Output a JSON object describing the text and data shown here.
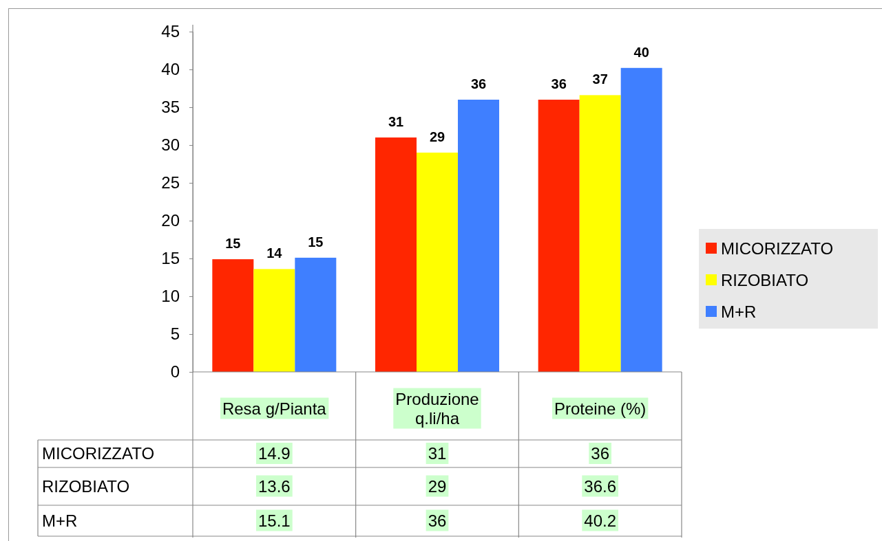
{
  "chart_data": {
    "type": "bar",
    "categories": [
      "Resa g/Pianta",
      "Produzione q.li/ha",
      "Proteine  (%)"
    ],
    "series": [
      {
        "name": "MICORIZZATO",
        "color": "#ff2600",
        "values": [
          14.9,
          31,
          36
        ]
      },
      {
        "name": "RIZOBIATO",
        "color": "#ffff00",
        "values": [
          13.6,
          29,
          36.6
        ]
      },
      {
        "name": "M+R",
        "color": "#3f7fff",
        "values": [
          15.1,
          36,
          40.2
        ]
      }
    ],
    "annotations": [
      "15",
      "31",
      "36",
      "14",
      "29",
      "37",
      "15",
      "36",
      "40"
    ],
    "ylim": [
      0,
      45
    ],
    "yticks": [
      0,
      5,
      10,
      15,
      20,
      25,
      30,
      35,
      40,
      45
    ],
    "grid": false,
    "legend": "right",
    "data_labels": true
  }
}
